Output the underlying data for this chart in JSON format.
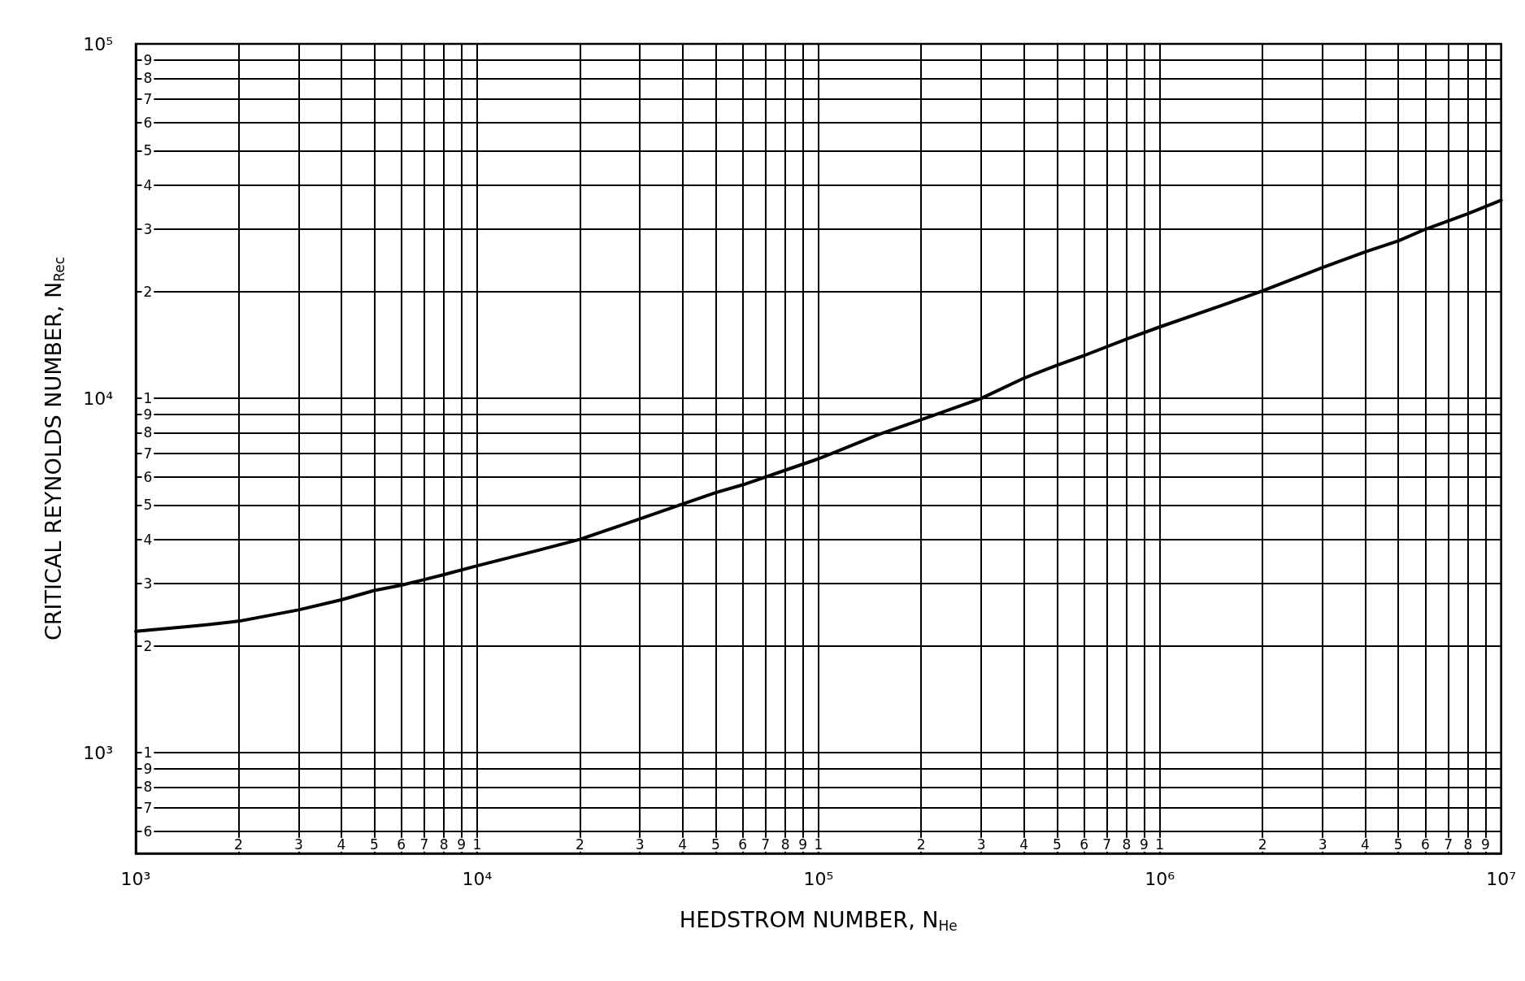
{
  "chart_data": {
    "type": "line",
    "xlabel": "HEDSTROM NUMBER, N$_{He}$",
    "ylabel": "CRITICAL REYNOLDS NUMBER, N$_{Rec}$",
    "x": [
      1000,
      1500,
      2000,
      3000,
      4000,
      5000,
      6000,
      7000,
      8000,
      10000,
      15000,
      20000,
      30000,
      40000,
      50000,
      60000,
      80000,
      100000,
      150000,
      200000,
      300000,
      400000,
      500000,
      600000,
      800000,
      1000000,
      1500000,
      2000000,
      3000000,
      4000000,
      5000000,
      6000000,
      8000000,
      10000000
    ],
    "values": [
      2200,
      2280,
      2350,
      2530,
      2700,
      2870,
      2970,
      3080,
      3180,
      3370,
      3720,
      4000,
      4570,
      5030,
      5420,
      5700,
      6270,
      6750,
      7900,
      8700,
      10000,
      11400,
      12400,
      13200,
      14700,
      15900,
      18200,
      20100,
      23400,
      25900,
      27800,
      30000,
      33200,
      36200
    ],
    "color": "#000000",
    "line_style": "solid",
    "log": "xy",
    "grid": true,
    "xlim": [
      1000,
      10000000
    ],
    "xticks": [
      {
        "value": 1000,
        "label": "10³"
      },
      {
        "value": 2000,
        "label": null
      },
      {
        "value": 3000,
        "label": null
      },
      {
        "value": 4000,
        "label": null
      },
      {
        "value": 5000,
        "label": null
      },
      {
        "value": 6000,
        "label": null
      },
      {
        "value": 7000,
        "label": null
      },
      {
        "value": 8000,
        "label": null
      },
      {
        "value": 9000,
        "label": null
      },
      {
        "value": 10000,
        "label": "10⁴"
      },
      {
        "value": 20000,
        "label": null
      },
      {
        "value": 30000,
        "label": null
      },
      {
        "value": 40000,
        "label": null
      },
      {
        "value": 50000,
        "label": null
      },
      {
        "value": 60000,
        "label": null
      },
      {
        "value": 70000,
        "label": null
      },
      {
        "value": 80000,
        "label": null
      },
      {
        "value": 90000,
        "label": null
      },
      {
        "value": 100000,
        "label": "10⁵"
      },
      {
        "value": 200000,
        "label": null
      },
      {
        "value": 300000,
        "label": null
      },
      {
        "value": 400000,
        "label": null
      },
      {
        "value": 500000,
        "label": null
      },
      {
        "value": 600000,
        "label": null
      },
      {
        "value": 700000,
        "label": null
      },
      {
        "value": 800000,
        "label": null
      },
      {
        "value": 900000,
        "label": null
      },
      {
        "value": 1000000,
        "label": "10⁶"
      },
      {
        "value": 2000000,
        "label": null
      },
      {
        "value": 3000000,
        "label": null
      },
      {
        "value": 4000000,
        "label": null
      },
      {
        "value": 5000000,
        "label": null
      },
      {
        "value": 6000000,
        "label": null
      },
      {
        "value": 7000000,
        "label": null
      },
      {
        "value": 8000000,
        "label": null
      },
      {
        "value": 9000000,
        "label": null
      },
      {
        "value": 10000000,
        "label": "10⁷"
      }
    ],
    "ylim": [
      520,
      100000
    ],
    "yticks": [
      {
        "value": 600,
        "label": null
      },
      {
        "value": 700,
        "label": null
      },
      {
        "value": 800,
        "label": null
      },
      {
        "value": 900,
        "label": null
      },
      {
        "value": 1000,
        "label": "10³"
      },
      {
        "value": 2000,
        "label": null
      },
      {
        "value": 3000,
        "label": null
      },
      {
        "value": 4000,
        "label": null
      },
      {
        "value": 5000,
        "label": null
      },
      {
        "value": 6000,
        "label": null
      },
      {
        "value": 7000,
        "label": null
      },
      {
        "value": 8000,
        "label": null
      },
      {
        "value": 9000,
        "label": null
      },
      {
        "value": 10000,
        "label": "10⁴"
      },
      {
        "value": 20000,
        "label": null
      },
      {
        "value": 30000,
        "label": null
      },
      {
        "value": 40000,
        "label": null
      },
      {
        "value": 50000,
        "label": null
      },
      {
        "value": 60000,
        "label": null
      },
      {
        "value": 70000,
        "label": null
      },
      {
        "value": 80000,
        "label": null
      },
      {
        "value": 90000,
        "label": null
      },
      {
        "value": 100000,
        "label": "10⁵"
      }
    ],
    "annotations": [
      {
        "text": "2",
        "x": 2000,
        "y": 550
      },
      {
        "text": "3",
        "x": 3000,
        "y": 550
      },
      {
        "text": "4",
        "x": 4000,
        "y": 550
      },
      {
        "text": "5",
        "x": 5000,
        "y": 550
      },
      {
        "text": "6",
        "x": 6000,
        "y": 550
      },
      {
        "text": "7",
        "x": 7000,
        "y": 550
      },
      {
        "text": "8",
        "x": 8000,
        "y": 550
      },
      {
        "text": "9",
        "x": 9000,
        "y": 550
      },
      {
        "text": "1",
        "x": 10000,
        "y": 550
      },
      {
        "text": "2",
        "x": 20000,
        "y": 550
      },
      {
        "text": "3",
        "x": 30000,
        "y": 550
      },
      {
        "text": "4",
        "x": 40000,
        "y": 550
      },
      {
        "text": "5",
        "x": 50000,
        "y": 550
      },
      {
        "text": "6",
        "x": 60000,
        "y": 550
      },
      {
        "text": "7",
        "x": 70000,
        "y": 550
      },
      {
        "text": "8",
        "x": 80000,
        "y": 550
      },
      {
        "text": "9",
        "x": 90000,
        "y": 550
      },
      {
        "text": "1",
        "x": 100000,
        "y": 550
      },
      {
        "text": "2",
        "x": 200000,
        "y": 550
      },
      {
        "text": "3",
        "x": 300000,
        "y": 550
      },
      {
        "text": "4",
        "x": 400000,
        "y": 550
      },
      {
        "text": "5",
        "x": 500000,
        "y": 550
      },
      {
        "text": "6",
        "x": 600000,
        "y": 550
      },
      {
        "text": "7",
        "x": 700000,
        "y": 550
      },
      {
        "text": "8",
        "x": 800000,
        "y": 550
      },
      {
        "text": "9",
        "x": 900000,
        "y": 550
      },
      {
        "text": "1",
        "x": 1000000,
        "y": 550
      },
      {
        "text": "2",
        "x": 2000000,
        "y": 550
      },
      {
        "text": "3",
        "x": 3000000,
        "y": 550
      },
      {
        "text": "4",
        "x": 4000000,
        "y": 550
      },
      {
        "text": "5",
        "x": 5000000,
        "y": 550
      },
      {
        "text": "6",
        "x": 6000000,
        "y": 550
      },
      {
        "text": "7",
        "x": 7000000,
        "y": 550
      },
      {
        "text": "8",
        "x": 8000000,
        "y": 550
      },
      {
        "text": "9",
        "x": 9000000,
        "y": 550
      },
      {
        "text": "6",
        "x": 1085,
        "y": 600
      },
      {
        "text": "7",
        "x": 1085,
        "y": 700
      },
      {
        "text": "8",
        "x": 1085,
        "y": 800
      },
      {
        "text": "9",
        "x": 1085,
        "y": 900
      },
      {
        "text": "1",
        "x": 1085,
        "y": 1000
      },
      {
        "text": "2",
        "x": 1085,
        "y": 2000
      },
      {
        "text": "3",
        "x": 1085,
        "y": 3000
      },
      {
        "text": "4",
        "x": 1085,
        "y": 4000
      },
      {
        "text": "5",
        "x": 1085,
        "y": 5000
      },
      {
        "text": "6",
        "x": 1085,
        "y": 6000
      },
      {
        "text": "7",
        "x": 1085,
        "y": 7000
      },
      {
        "text": "8",
        "x": 1085,
        "y": 8000
      },
      {
        "text": "9",
        "x": 1085,
        "y": 9000
      },
      {
        "text": "1",
        "x": 1085,
        "y": 10000
      },
      {
        "text": "2",
        "x": 1085,
        "y": 20000
      },
      {
        "text": "3",
        "x": 1085,
        "y": 30000
      },
      {
        "text": "4",
        "x": 1085,
        "y": 40000
      },
      {
        "text": "5",
        "x": 1085,
        "y": 50000
      },
      {
        "text": "6",
        "x": 1085,
        "y": 60000
      },
      {
        "text": "7",
        "x": 1085,
        "y": 70000
      },
      {
        "text": "8",
        "x": 1085,
        "y": 80000
      },
      {
        "text": "9",
        "x": 1085,
        "y": 90000
      }
    ]
  }
}
